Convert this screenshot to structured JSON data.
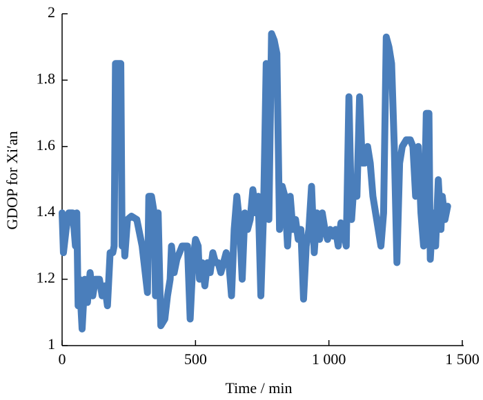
{
  "chart_data": {
    "type": "line",
    "x_label": "Time / min",
    "y_label": "GDOP for Xi′an",
    "x": [
      0,
      5,
      15,
      25,
      40,
      50,
      55,
      60,
      65,
      75,
      85,
      95,
      105,
      115,
      125,
      140,
      150,
      160,
      170,
      180,
      190,
      195,
      200,
      210,
      220,
      225,
      230,
      235,
      245,
      260,
      280,
      300,
      320,
      325,
      335,
      345,
      350,
      360,
      370,
      385,
      395,
      405,
      410,
      420,
      430,
      440,
      450,
      470,
      480,
      490,
      500,
      510,
      515,
      525,
      535,
      545,
      555,
      565,
      575,
      585,
      595,
      605,
      615,
      625,
      635,
      645,
      655,
      665,
      675,
      685,
      695,
      705,
      715,
      725,
      735,
      745,
      755,
      765,
      775,
      785,
      795,
      805,
      815,
      825,
      835,
      845,
      855,
      865,
      875,
      885,
      895,
      905,
      915,
      925,
      935,
      945,
      955,
      965,
      975,
      985,
      995,
      1005,
      1015,
      1025,
      1035,
      1045,
      1055,
      1065,
      1075,
      1085,
      1095,
      1105,
      1115,
      1125,
      1135,
      1145,
      1155,
      1165,
      1175,
      1185,
      1195,
      1205,
      1215,
      1225,
      1235,
      1245,
      1255,
      1265,
      1275,
      1290,
      1305,
      1315,
      1325,
      1335,
      1345,
      1355,
      1365,
      1375,
      1380,
      1390,
      1400,
      1410,
      1420,
      1425,
      1435,
      1445
    ],
    "series": [
      {
        "name": "GDOP",
        "color": "#4a7ebb",
        "values": [
          1.4,
          1.28,
          1.35,
          1.4,
          1.4,
          1.3,
          1.4,
          1.12,
          1.2,
          1.05,
          1.2,
          1.13,
          1.22,
          1.15,
          1.2,
          1.2,
          1.15,
          1.18,
          1.12,
          1.28,
          1.28,
          1.3,
          1.85,
          1.85,
          1.85,
          1.3,
          1.38,
          1.27,
          1.38,
          1.39,
          1.38,
          1.3,
          1.16,
          1.45,
          1.45,
          1.4,
          1.15,
          1.4,
          1.06,
          1.08,
          1.15,
          1.2,
          1.3,
          1.22,
          1.26,
          1.28,
          1.3,
          1.3,
          1.08,
          1.25,
          1.32,
          1.3,
          1.2,
          1.25,
          1.18,
          1.25,
          1.22,
          1.28,
          1.25,
          1.25,
          1.22,
          1.25,
          1.28,
          1.25,
          1.15,
          1.35,
          1.45,
          1.37,
          1.2,
          1.4,
          1.35,
          1.38,
          1.47,
          1.4,
          1.45,
          1.15,
          1.4,
          1.85,
          1.38,
          1.94,
          1.92,
          1.88,
          1.35,
          1.48,
          1.45,
          1.3,
          1.45,
          1.35,
          1.38,
          1.32,
          1.35,
          1.14,
          1.3,
          1.35,
          1.48,
          1.28,
          1.4,
          1.32,
          1.4,
          1.35,
          1.32,
          1.35,
          1.33,
          1.35,
          1.3,
          1.37,
          1.35,
          1.3,
          1.75,
          1.38,
          1.5,
          1.45,
          1.75,
          1.55,
          1.55,
          1.6,
          1.55,
          1.45,
          1.4,
          1.35,
          1.3,
          1.4,
          1.93,
          1.9,
          1.85,
          1.6,
          1.25,
          1.55,
          1.6,
          1.62,
          1.62,
          1.6,
          1.45,
          1.6,
          1.4,
          1.3,
          1.7,
          1.7,
          1.26,
          1.4,
          1.3,
          1.5,
          1.35,
          1.45,
          1.38,
          1.42
        ]
      }
    ],
    "xlim": [
      0,
      1500
    ],
    "xticks": [
      0,
      500,
      {
        "value": 1000,
        "label": "1 000"
      },
      {
        "value": 1500,
        "label": "1 500"
      }
    ],
    "ylim": [
      1,
      2
    ],
    "yticks": [
      1,
      1.2,
      1.4,
      1.6,
      1.8,
      2
    ]
  }
}
